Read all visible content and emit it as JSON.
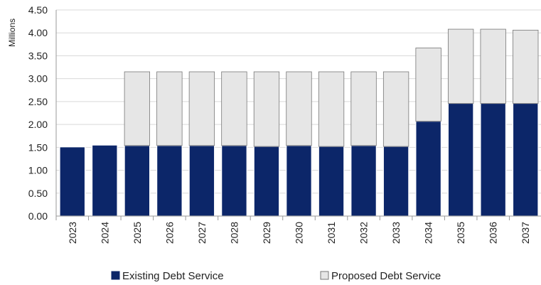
{
  "chart_data": {
    "type": "bar",
    "stacked": true,
    "title": "",
    "xlabel": "",
    "ylabel": "Millions",
    "ylim": [
      0,
      4.5
    ],
    "yticks": [
      "0.00",
      "0.50",
      "1.00",
      "1.50",
      "2.00",
      "2.50",
      "3.00",
      "3.50",
      "4.00",
      "4.50"
    ],
    "grid": true,
    "legend_position": "bottom",
    "categories": [
      "2023",
      "2024",
      "2025",
      "2026",
      "2027",
      "2028",
      "2029",
      "2030",
      "2031",
      "2032",
      "2033",
      "2034",
      "2035",
      "2036",
      "2037"
    ],
    "series": [
      {
        "name": "Existing Debt Service",
        "color": "#0c2669",
        "values": [
          1.51,
          1.55,
          1.54,
          1.54,
          1.54,
          1.54,
          1.52,
          1.54,
          1.52,
          1.54,
          1.52,
          2.07,
          2.46,
          2.46,
          2.46
        ]
      },
      {
        "name": "Proposed Debt Service",
        "color": "#e6e6e6",
        "values": [
          0,
          0,
          1.61,
          1.61,
          1.61,
          1.61,
          1.63,
          1.61,
          1.63,
          1.61,
          1.63,
          1.6,
          1.62,
          1.62,
          1.6
        ]
      }
    ]
  }
}
